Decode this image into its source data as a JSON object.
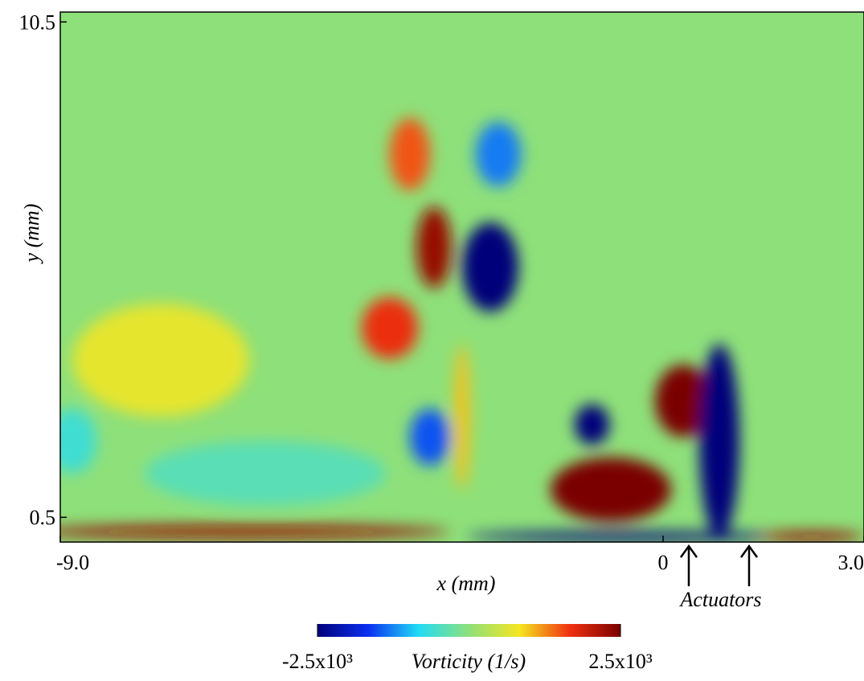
{
  "chart_data": {
    "type": "vorticity-field",
    "xlabel": "x (mm)",
    "ylabel": "y (mm)",
    "xlim": [
      -9.0,
      3.0
    ],
    "ylim": [
      0,
      10.7
    ],
    "xticks": [
      {
        "value": -9.0,
        "label": "-9.0"
      },
      0,
      {
        "value": 3.0,
        "label": "3.0"
      }
    ],
    "yticks": [
      0.5,
      {
        "value": 10.5,
        "label": "10.5"
      }
    ],
    "colormap": [
      "#00007a",
      "#0a2ff0",
      "#22dcf5",
      "#8ee07a",
      "#f5e620",
      "#f03010",
      "#7a0000"
    ],
    "clim": [
      -2500,
      2500
    ],
    "colorbar_label": "Vorticity (1/s)",
    "cticks": [
      {
        "value": -2500,
        "label": "-2.5x10³"
      },
      {
        "value": 2500,
        "label": "2.5x10³"
      }
    ],
    "annotation": "Actuators",
    "vortices": [
      {
        "x": -7.5,
        "y": 3.67,
        "rx": 1.32,
        "ry": 1.14,
        "value": 700
      },
      {
        "x": -5.94,
        "y": 1.39,
        "rx": 1.8,
        "ry": 0.65,
        "value": -400
      },
      {
        "x": -8.82,
        "y": 2.04,
        "rx": 0.36,
        "ry": 0.65,
        "value": -600
      },
      {
        "x": -3.78,
        "y": 7.83,
        "rx": 0.3,
        "ry": 0.73,
        "value": 1500
      },
      {
        "x": -2.46,
        "y": 7.83,
        "rx": 0.34,
        "ry": 0.65,
        "value": -1300
      },
      {
        "x": -3.42,
        "y": 5.95,
        "rx": 0.26,
        "ry": 0.82,
        "value": 2300
      },
      {
        "x": -2.58,
        "y": 5.55,
        "rx": 0.42,
        "ry": 0.9,
        "value": -2500
      },
      {
        "x": -4.08,
        "y": 4.32,
        "rx": 0.42,
        "ry": 0.62,
        "value": 1700
      },
      {
        "x": -3.48,
        "y": 2.12,
        "rx": 0.3,
        "ry": 0.57,
        "value": -1500
      },
      {
        "x": -3.0,
        "y": 2.53,
        "rx": 0.12,
        "ry": 1.47,
        "value": 1000
      },
      {
        "x": -1.06,
        "y": 2.37,
        "rx": 0.26,
        "ry": 0.41,
        "value": -2500
      },
      {
        "x": -0.78,
        "y": 1.06,
        "rx": 0.9,
        "ry": 0.65,
        "value": 2500
      },
      {
        "x": 0.3,
        "y": 2.85,
        "rx": 0.42,
        "ry": 0.73,
        "value": 2500
      },
      {
        "x": 0.84,
        "y": 2.04,
        "rx": 0.3,
        "ry": 1.96,
        "value": -2500
      },
      {
        "x": -6.3,
        "y": 0.21,
        "rx": 3.12,
        "ry": 0.13,
        "value": 2300
      },
      {
        "x": -0.54,
        "y": 0.11,
        "rx": 2.4,
        "ry": 0.1,
        "value": -2500
      },
      {
        "x": 2.22,
        "y": 0.11,
        "rx": 0.78,
        "ry": 0.1,
        "value": 2300
      }
    ]
  }
}
